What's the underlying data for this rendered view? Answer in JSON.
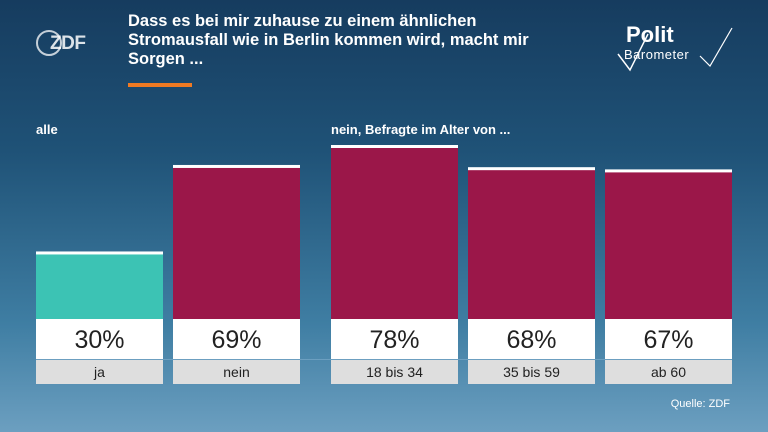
{
  "header": {
    "title": "Dass es bei mir zuhause zu einem ähnlichen Stromausfall wie in Berlin kommen wird, macht mir Sorgen ...",
    "logo_left": "ZDF",
    "logo_right_line1": "Polit",
    "logo_right_line2": "Barometer"
  },
  "group_labels": {
    "left": "alle",
    "right": "nein, Befragte im Alter von ..."
  },
  "source": "Quelle: ZDF",
  "colors": {
    "accent": "#f07a22",
    "ja": "#3cc3b4",
    "nein": "#9b1749"
  },
  "chart_data": {
    "type": "bar",
    "categories": [
      "ja",
      "nein",
      "18 bis 34",
      "35 bis 59",
      "ab 60"
    ],
    "values": [
      30,
      69,
      78,
      68,
      67
    ],
    "value_labels": [
      "30%",
      "69%",
      "78%",
      "68%",
      "67%"
    ],
    "unit": "%",
    "ylim": [
      0,
      80
    ],
    "title": "",
    "xlabel": "",
    "ylabel": ""
  }
}
